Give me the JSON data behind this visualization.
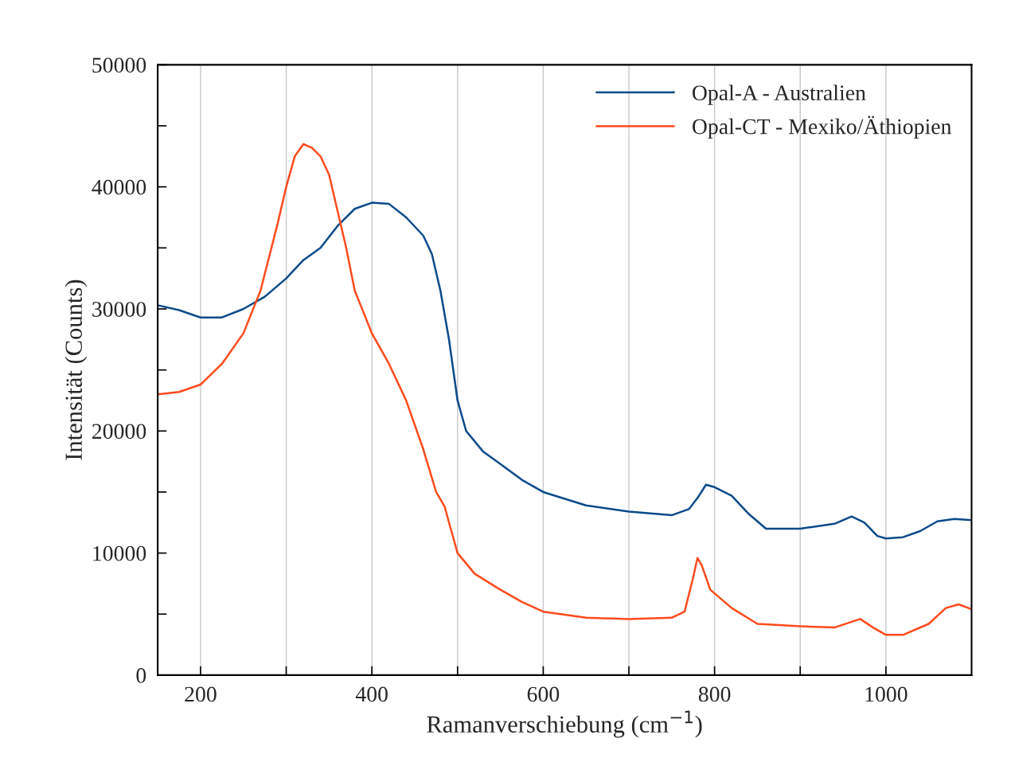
{
  "chart_data": {
    "type": "line",
    "xlabel": "Ramanverschiebung (cm$^{−1}$)",
    "ylabel": "Intensität (Counts)",
    "xlim": [
      150,
      1100
    ],
    "ylim": [
      0,
      50000
    ],
    "xticks": [
      200,
      {
        "value": 300,
        "label": null
      },
      400,
      {
        "value": 500,
        "label": null
      },
      600,
      {
        "value": 700,
        "label": null
      },
      800,
      {
        "value": 900,
        "label": null
      },
      1000
    ],
    "yticks": [
      0,
      {
        "value": 5000,
        "label": null
      },
      10000,
      {
        "value": 15000,
        "label": null
      },
      20000,
      {
        "value": 25000,
        "label": null
      },
      30000,
      {
        "value": 35000,
        "label": null
      },
      40000,
      {
        "value": 45000,
        "label": null
      },
      50000
    ],
    "grid": "x",
    "legend": "top right",
    "marker": "none",
    "line_style": "solid",
    "series": [
      {
        "name": "Opal-A - Australien",
        "color": "#0b4a8b",
        "x": [
          150,
          175,
          200,
          225,
          250,
          275,
          300,
          320,
          340,
          360,
          380,
          400,
          420,
          440,
          460,
          470,
          480,
          490,
          500,
          510,
          530,
          550,
          575,
          600,
          650,
          700,
          750,
          770,
          780,
          790,
          800,
          820,
          840,
          860,
          900,
          940,
          960,
          975,
          990,
          1000,
          1020,
          1040,
          1060,
          1080,
          1100
        ],
        "values": [
          30300,
          29900,
          29300,
          29300,
          30000,
          31000,
          32500,
          34000,
          35000,
          36800,
          38200,
          38700,
          38600,
          37500,
          36000,
          34500,
          31500,
          27500,
          22500,
          20000,
          18300,
          17300,
          16000,
          15000,
          13900,
          13400,
          13100,
          13600,
          14500,
          15600,
          15400,
          14700,
          13200,
          12000,
          12000,
          12400,
          13000,
          12500,
          11400,
          11200,
          11300,
          11800,
          12600,
          12800,
          12700
        ]
      },
      {
        "name": "Opal-CT - Mexiko/Äthiopien",
        "color": "#ff4b1c",
        "x": [
          150,
          175,
          200,
          225,
          250,
          270,
          290,
          300,
          310,
          320,
          330,
          340,
          350,
          360,
          370,
          380,
          400,
          420,
          440,
          460,
          475,
          485,
          490,
          500,
          520,
          550,
          575,
          600,
          650,
          700,
          750,
          765,
          775,
          780,
          785,
          795,
          820,
          850,
          900,
          940,
          970,
          985,
          1000,
          1020,
          1050,
          1070,
          1085,
          1100
        ],
        "values": [
          23000,
          23200,
          23800,
          25500,
          28000,
          31500,
          37000,
          40000,
          42500,
          43500,
          43200,
          42500,
          41000,
          38000,
          35000,
          31500,
          28000,
          25500,
          22500,
          18500,
          15000,
          13800,
          12500,
          10000,
          8300,
          7000,
          6000,
          5200,
          4700,
          4600,
          4700,
          5200,
          8000,
          9600,
          9000,
          7000,
          5500,
          4200,
          4000,
          3900,
          4600,
          3900,
          3300,
          3300,
          4200,
          5500,
          5800,
          5400
        ]
      }
    ]
  }
}
